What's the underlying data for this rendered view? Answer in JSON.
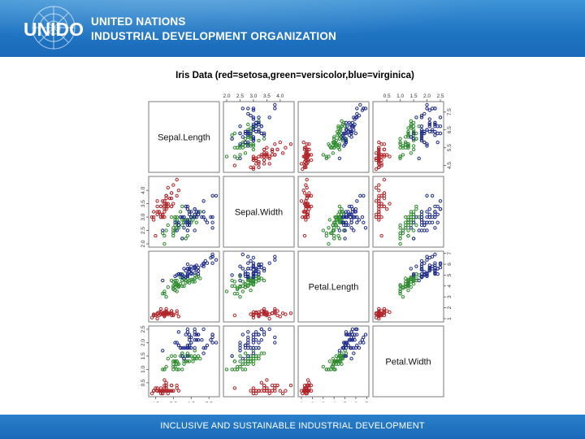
{
  "header": {
    "logo_text": "UNIDO",
    "org_line1": "UNITED NATIONS",
    "org_line2": "INDUSTRIAL DEVELOPMENT ORGANIZATION"
  },
  "footer": {
    "tagline": "INCLUSIVE AND SUSTAINABLE INDUSTRIAL DEVELOPMENT"
  },
  "colors": {
    "header": "#1f74c2",
    "setosa": "#b0262a",
    "versicolor": "#2e8b2e",
    "virginica": "#1f2d8a"
  },
  "chart_data": {
    "type": "scatter",
    "title": "Iris Data (red=setosa,green=versicolor,blue=virginica)",
    "variables": [
      "Sepal.Length",
      "Sepal.Width",
      "Petal.Length",
      "Petal.Width"
    ],
    "ranges": [
      [
        4.3,
        7.9
      ],
      [
        2.0,
        4.4
      ],
      [
        1.0,
        6.9
      ],
      [
        0.1,
        2.5
      ]
    ],
    "tick_labels": [
      [
        "4.5",
        "5.5",
        "6.5",
        "7.5"
      ],
      [
        "2.0",
        "2.5",
        "3.0",
        "3.5",
        "4.0"
      ],
      [
        "1",
        "2",
        "3",
        "4",
        "5",
        "6",
        "7"
      ],
      [
        "0.5",
        "1.0",
        "1.5",
        "2.0",
        "2.5"
      ]
    ],
    "series": [
      {
        "name": "setosa",
        "points": [
          [
            5.1,
            3.5,
            1.4,
            0.2
          ],
          [
            4.9,
            3.0,
            1.4,
            0.2
          ],
          [
            4.7,
            3.2,
            1.3,
            0.2
          ],
          [
            4.6,
            3.1,
            1.5,
            0.2
          ],
          [
            5.0,
            3.6,
            1.4,
            0.2
          ],
          [
            5.4,
            3.9,
            1.7,
            0.4
          ],
          [
            4.6,
            3.4,
            1.4,
            0.3
          ],
          [
            5.0,
            3.4,
            1.5,
            0.2
          ],
          [
            4.4,
            2.9,
            1.4,
            0.2
          ],
          [
            4.9,
            3.1,
            1.5,
            0.1
          ],
          [
            5.4,
            3.7,
            1.5,
            0.2
          ],
          [
            4.8,
            3.4,
            1.6,
            0.2
          ],
          [
            4.8,
            3.0,
            1.4,
            0.1
          ],
          [
            4.3,
            3.0,
            1.1,
            0.1
          ],
          [
            5.8,
            4.0,
            1.2,
            0.2
          ],
          [
            5.7,
            4.4,
            1.5,
            0.4
          ],
          [
            5.4,
            3.9,
            1.3,
            0.4
          ],
          [
            5.1,
            3.5,
            1.4,
            0.3
          ],
          [
            5.7,
            3.8,
            1.7,
            0.3
          ],
          [
            5.1,
            3.8,
            1.5,
            0.3
          ],
          [
            5.4,
            3.4,
            1.7,
            0.2
          ],
          [
            5.1,
            3.7,
            1.5,
            0.4
          ],
          [
            4.6,
            3.6,
            1.0,
            0.2
          ],
          [
            5.1,
            3.3,
            1.7,
            0.5
          ],
          [
            4.8,
            3.4,
            1.9,
            0.2
          ],
          [
            5.0,
            3.0,
            1.6,
            0.2
          ],
          [
            5.0,
            3.4,
            1.6,
            0.4
          ],
          [
            5.2,
            3.5,
            1.5,
            0.2
          ],
          [
            5.2,
            3.4,
            1.4,
            0.2
          ],
          [
            4.7,
            3.2,
            1.6,
            0.2
          ],
          [
            4.8,
            3.1,
            1.6,
            0.2
          ],
          [
            5.4,
            3.4,
            1.5,
            0.4
          ],
          [
            5.2,
            4.1,
            1.5,
            0.1
          ],
          [
            5.5,
            4.2,
            1.4,
            0.2
          ],
          [
            4.9,
            3.1,
            1.5,
            0.2
          ],
          [
            5.0,
            3.2,
            1.2,
            0.2
          ],
          [
            5.5,
            3.5,
            1.3,
            0.2
          ],
          [
            4.9,
            3.6,
            1.4,
            0.1
          ],
          [
            4.4,
            3.0,
            1.3,
            0.2
          ],
          [
            5.1,
            3.4,
            1.5,
            0.2
          ],
          [
            5.0,
            3.5,
            1.3,
            0.3
          ],
          [
            4.5,
            2.3,
            1.3,
            0.3
          ],
          [
            4.4,
            3.2,
            1.3,
            0.2
          ],
          [
            5.0,
            3.5,
            1.6,
            0.6
          ],
          [
            5.1,
            3.8,
            1.9,
            0.4
          ],
          [
            4.8,
            3.0,
            1.4,
            0.3
          ],
          [
            5.1,
            3.8,
            1.6,
            0.2
          ],
          [
            4.6,
            3.2,
            1.4,
            0.2
          ],
          [
            5.3,
            3.7,
            1.5,
            0.2
          ],
          [
            5.0,
            3.3,
            1.4,
            0.2
          ]
        ]
      },
      {
        "name": "versicolor",
        "points": [
          [
            7.0,
            3.2,
            4.7,
            1.4
          ],
          [
            6.4,
            3.2,
            4.5,
            1.5
          ],
          [
            6.9,
            3.1,
            4.9,
            1.5
          ],
          [
            5.5,
            2.3,
            4.0,
            1.3
          ],
          [
            6.5,
            2.8,
            4.6,
            1.5
          ],
          [
            5.7,
            2.8,
            4.5,
            1.3
          ],
          [
            6.3,
            3.3,
            4.7,
            1.6
          ],
          [
            4.9,
            2.4,
            3.3,
            1.0
          ],
          [
            6.6,
            2.9,
            4.6,
            1.3
          ],
          [
            5.2,
            2.7,
            3.9,
            1.4
          ],
          [
            5.0,
            2.0,
            3.5,
            1.0
          ],
          [
            5.9,
            3.0,
            4.2,
            1.5
          ],
          [
            6.0,
            2.2,
            4.0,
            1.0
          ],
          [
            6.1,
            2.9,
            4.7,
            1.4
          ],
          [
            5.6,
            2.9,
            3.6,
            1.3
          ],
          [
            6.7,
            3.1,
            4.4,
            1.4
          ],
          [
            5.6,
            3.0,
            4.5,
            1.5
          ],
          [
            5.8,
            2.7,
            4.1,
            1.0
          ],
          [
            6.2,
            2.2,
            4.5,
            1.5
          ],
          [
            5.6,
            2.5,
            3.9,
            1.1
          ],
          [
            5.9,
            3.2,
            4.8,
            1.8
          ],
          [
            6.1,
            2.8,
            4.0,
            1.3
          ],
          [
            6.3,
            2.5,
            4.9,
            1.5
          ],
          [
            6.1,
            2.8,
            4.7,
            1.2
          ],
          [
            6.4,
            2.9,
            4.3,
            1.3
          ],
          [
            6.6,
            3.0,
            4.4,
            1.4
          ],
          [
            6.8,
            2.8,
            4.8,
            1.4
          ],
          [
            6.7,
            3.0,
            5.0,
            1.7
          ],
          [
            6.0,
            2.9,
            4.5,
            1.5
          ],
          [
            5.7,
            2.6,
            3.5,
            1.0
          ],
          [
            5.5,
            2.4,
            3.8,
            1.1
          ],
          [
            5.5,
            2.4,
            3.7,
            1.0
          ],
          [
            5.8,
            2.7,
            3.9,
            1.2
          ],
          [
            6.0,
            2.7,
            5.1,
            1.6
          ],
          [
            5.4,
            3.0,
            4.5,
            1.5
          ],
          [
            6.0,
            3.4,
            4.5,
            1.6
          ],
          [
            6.7,
            3.1,
            4.7,
            1.5
          ],
          [
            6.3,
            2.3,
            4.4,
            1.3
          ],
          [
            5.6,
            3.0,
            4.1,
            1.3
          ],
          [
            5.5,
            2.5,
            4.0,
            1.3
          ],
          [
            5.5,
            2.6,
            4.4,
            1.2
          ],
          [
            6.1,
            3.0,
            4.6,
            1.4
          ],
          [
            5.8,
            2.6,
            4.0,
            1.2
          ],
          [
            5.0,
            2.3,
            3.3,
            1.0
          ],
          [
            5.6,
            2.7,
            4.2,
            1.3
          ],
          [
            5.7,
            3.0,
            4.2,
            1.2
          ],
          [
            5.7,
            2.9,
            4.2,
            1.3
          ],
          [
            6.2,
            2.9,
            4.3,
            1.3
          ],
          [
            5.1,
            2.5,
            3.0,
            1.1
          ],
          [
            5.7,
            2.8,
            4.1,
            1.3
          ]
        ]
      },
      {
        "name": "virginica",
        "points": [
          [
            6.3,
            3.3,
            6.0,
            2.5
          ],
          [
            5.8,
            2.7,
            5.1,
            1.9
          ],
          [
            7.1,
            3.0,
            5.9,
            2.1
          ],
          [
            6.3,
            2.9,
            5.6,
            1.8
          ],
          [
            6.5,
            3.0,
            5.8,
            2.2
          ],
          [
            7.6,
            3.0,
            6.6,
            2.1
          ],
          [
            4.9,
            2.5,
            4.5,
            1.7
          ],
          [
            7.3,
            2.9,
            6.3,
            1.8
          ],
          [
            6.7,
            2.5,
            5.8,
            1.8
          ],
          [
            7.2,
            3.6,
            6.1,
            2.5
          ],
          [
            6.5,
            3.2,
            5.1,
            2.0
          ],
          [
            6.4,
            2.7,
            5.3,
            1.9
          ],
          [
            6.8,
            3.0,
            5.5,
            2.1
          ],
          [
            5.7,
            2.5,
            5.0,
            2.0
          ],
          [
            5.8,
            2.8,
            5.1,
            2.4
          ],
          [
            6.4,
            3.2,
            5.3,
            2.3
          ],
          [
            6.5,
            3.0,
            5.5,
            1.8
          ],
          [
            7.7,
            3.8,
            6.7,
            2.2
          ],
          [
            7.7,
            2.6,
            6.9,
            2.3
          ],
          [
            6.0,
            2.2,
            5.0,
            1.5
          ],
          [
            6.9,
            3.2,
            5.7,
            2.3
          ],
          [
            5.6,
            2.8,
            4.9,
            2.0
          ],
          [
            7.7,
            2.8,
            6.7,
            2.0
          ],
          [
            6.3,
            2.7,
            4.9,
            1.8
          ],
          [
            6.7,
            3.3,
            5.7,
            2.1
          ],
          [
            7.2,
            3.2,
            6.0,
            1.8
          ],
          [
            6.2,
            2.8,
            4.8,
            1.8
          ],
          [
            6.1,
            3.0,
            4.9,
            1.8
          ],
          [
            6.4,
            2.8,
            5.6,
            2.1
          ],
          [
            7.2,
            3.0,
            5.8,
            1.6
          ],
          [
            7.4,
            2.8,
            6.1,
            1.9
          ],
          [
            7.9,
            3.8,
            6.4,
            2.0
          ],
          [
            6.4,
            2.8,
            5.6,
            2.2
          ],
          [
            6.3,
            2.8,
            5.1,
            1.5
          ],
          [
            6.1,
            2.6,
            5.6,
            1.4
          ],
          [
            7.7,
            3.0,
            6.1,
            2.3
          ],
          [
            6.3,
            3.4,
            5.6,
            2.4
          ],
          [
            6.4,
            3.1,
            5.5,
            1.8
          ],
          [
            6.0,
            3.0,
            4.8,
            1.8
          ],
          [
            6.9,
            3.1,
            5.4,
            2.1
          ],
          [
            6.7,
            3.1,
            5.6,
            2.4
          ],
          [
            6.9,
            3.1,
            5.1,
            2.3
          ],
          [
            5.8,
            2.7,
            5.1,
            1.9
          ],
          [
            6.8,
            3.2,
            5.9,
            2.3
          ],
          [
            6.7,
            3.3,
            5.7,
            2.5
          ],
          [
            6.7,
            3.0,
            5.2,
            2.3
          ],
          [
            6.3,
            2.5,
            5.0,
            1.9
          ],
          [
            6.5,
            3.0,
            5.2,
            2.0
          ],
          [
            6.2,
            3.4,
            5.4,
            2.3
          ],
          [
            5.9,
            3.0,
            5.1,
            1.8
          ]
        ]
      }
    ]
  }
}
